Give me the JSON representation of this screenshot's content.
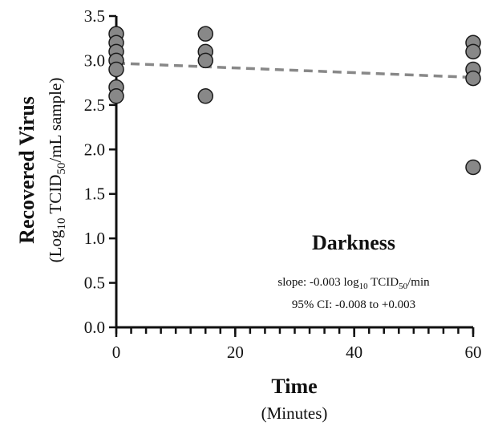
{
  "chart_data": {
    "type": "scatter",
    "title": "Darkness",
    "xlabel": "Time",
    "xlabel_sub": "(Minutes)",
    "ylabel": "Recovered Virus",
    "ylabel_sub": {
      "prefix": "(Log",
      "sub1": "10",
      "middle": " TCID",
      "sub2": "50",
      "suffix": "/mL sample)"
    },
    "xlim": [
      0,
      60
    ],
    "ylim": [
      0,
      3.5
    ],
    "x_ticks": [
      0,
      20,
      40,
      60
    ],
    "x_minor_step": 2.5,
    "y_ticks": [
      "0.0",
      "0.5",
      "1.0",
      "1.5",
      "2.0",
      "2.5",
      "3.0",
      "3.5"
    ],
    "grid": false,
    "series": [
      {
        "points": [
          {
            "x": 0,
            "y": 3.3
          },
          {
            "x": 0,
            "y": 3.2
          },
          {
            "x": 0,
            "y": 3.1
          },
          {
            "x": 0,
            "y": 3.0
          },
          {
            "x": 0,
            "y": 2.9
          },
          {
            "x": 0,
            "y": 2.7
          },
          {
            "x": 0,
            "y": 2.6
          },
          {
            "x": 15,
            "y": 3.3
          },
          {
            "x": 15,
            "y": 3.1
          },
          {
            "x": 15,
            "y": 3.0
          },
          {
            "x": 15,
            "y": 2.6
          },
          {
            "x": 60,
            "y": 3.2
          },
          {
            "x": 60,
            "y": 3.1
          },
          {
            "x": 60,
            "y": 2.9
          },
          {
            "x": 60,
            "y": 2.8
          },
          {
            "x": 60,
            "y": 1.8
          }
        ],
        "marker_color": "#888888",
        "marker_edge": "#1a1a1a"
      }
    ],
    "fit_line": {
      "x": [
        0,
        60
      ],
      "y": [
        2.97,
        2.81
      ],
      "color": "#888888",
      "style": "dashed"
    },
    "annotations": {
      "slope": {
        "prefix": "slope: -0.003 log",
        "sub1": "10",
        "middle": " TCID",
        "sub2": "50",
        "suffix": "/min"
      },
      "ci": "95% CI: -0.008 to +0.003"
    }
  }
}
